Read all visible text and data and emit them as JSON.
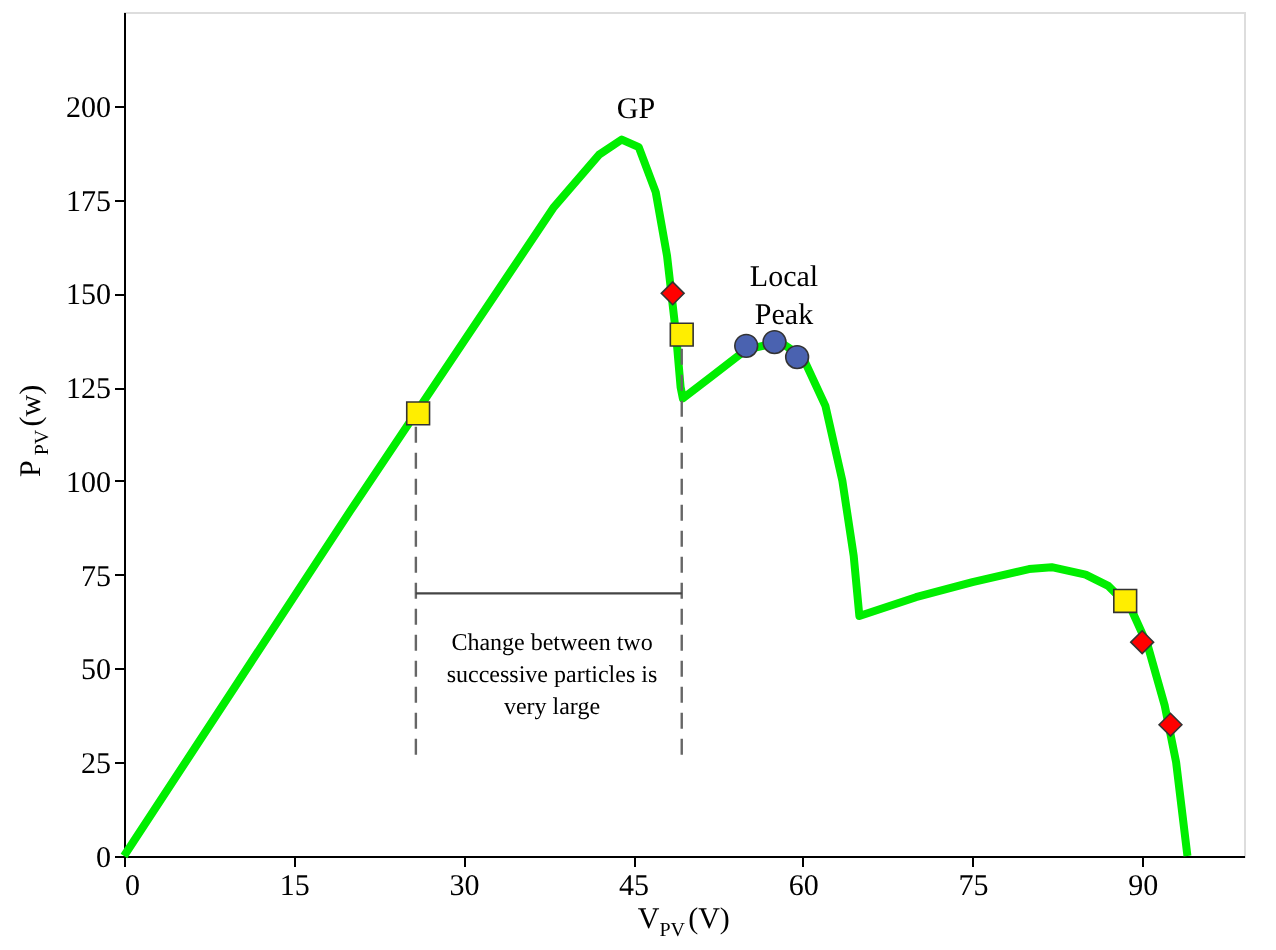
{
  "chart_data": {
    "type": "line",
    "xlabel": "V$_{PV}$(V)",
    "ylabel": "P$_{PV}$(w)",
    "xlim": [
      0,
      99
    ],
    "ylim": [
      0,
      225
    ],
    "xticks": [
      0,
      15,
      30,
      45,
      60,
      75,
      90
    ],
    "yticks": [
      0,
      25,
      50,
      75,
      100,
      125,
      150,
      175,
      200
    ],
    "grid": false,
    "series": [
      {
        "color": "#00ee00",
        "line_style": "solid",
        "x": [
          0,
          10,
          20,
          30,
          38,
          42,
          44,
          45.5,
          47,
          48,
          48.8,
          49.2,
          49.4,
          52,
          55,
          58,
          60,
          62,
          63.5,
          64.5,
          65,
          70,
          75,
          80,
          82,
          85,
          87,
          89,
          90.5,
          92,
          93,
          94
        ],
        "values": [
          0,
          46,
          92,
          137,
          173,
          187,
          191,
          189,
          177,
          160,
          139,
          125,
          122,
          128,
          135,
          137,
          133,
          120,
          100,
          80,
          64,
          69,
          73,
          76.5,
          77,
          75,
          72,
          66,
          56,
          40,
          25,
          0
        ]
      },
      {
        "color": "#666666",
        "line_style": "dashed",
        "x": [
          25.8,
          25.8
        ],
        "values": [
          27,
          118
        ]
      },
      {
        "color": "#666666",
        "line_style": "dashed",
        "x": [
          49.3,
          49.3
        ],
        "values": [
          27,
          139
        ]
      },
      {
        "color": "#444444",
        "line_style": "solid",
        "x": [
          25.8,
          49.3
        ],
        "values": [
          70,
          70
        ]
      },
      {
        "type": "scatter",
        "marker": "square",
        "color": "#ffee00",
        "x": [
          26,
          49.3,
          88.5
        ],
        "values": [
          118,
          139,
          68
        ]
      },
      {
        "type": "scatter",
        "marker": "diamond",
        "color": "#ff0000",
        "x": [
          48.5,
          90,
          92.5
        ],
        "values": [
          150,
          57,
          35
        ]
      },
      {
        "type": "scatter",
        "marker": "circle",
        "color": "#4a62b0",
        "x": [
          55,
          57.5,
          59.5
        ],
        "values": [
          136,
          137,
          133
        ]
      }
    ],
    "annotations": [
      "GP",
      "Local Peak",
      "Change between two successive particles is very large"
    ]
  }
}
